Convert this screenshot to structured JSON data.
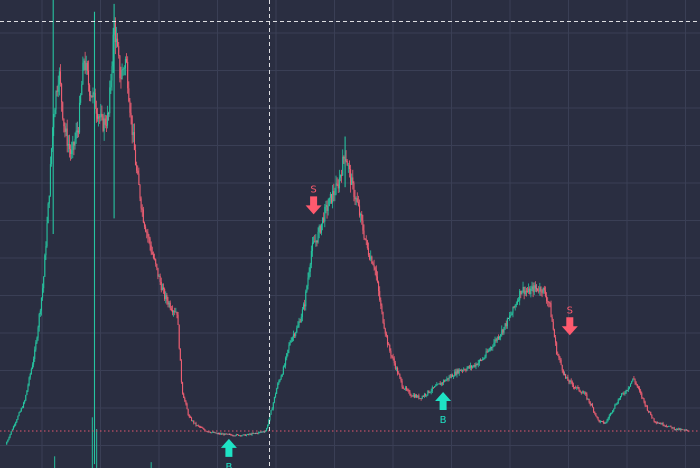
{
  "chart_data": {
    "type": "candlestick",
    "title": "",
    "xlabel": "",
    "ylabel": "",
    "grid": true,
    "legend": "none",
    "x_range": [
      0,
      100
    ],
    "y_range": [
      0,
      1200
    ],
    "reference_line": {
      "value": 95,
      "style": "dotted",
      "color": "#e0566d"
    },
    "crosshair": {
      "x": 38.5,
      "y": 1145,
      "style": "dashed",
      "color": "#ffffff"
    },
    "colors": {
      "background": "#2a2e41",
      "grid": "#3a3f55",
      "up": "#26c4a0",
      "down": "#ef5f73",
      "neutral": "#9aa0aa",
      "buy": "#1ee3c5",
      "sell": "#ff5a6e"
    },
    "price_path": [
      [
        0.8,
        60
      ],
      [
        2,
        110
      ],
      [
        3.5,
        170
      ],
      [
        5,
        300
      ],
      [
        6.2,
        480
      ],
      [
        7,
        700
      ],
      [
        7.6,
        900
      ],
      [
        8.4,
        1020
      ],
      [
        9.2,
        870
      ],
      [
        10.2,
        800
      ],
      [
        11.2,
        880
      ],
      [
        12,
        1050
      ],
      [
        12.7,
        980
      ],
      [
        13.5,
        940
      ],
      [
        14.6,
        880
      ],
      [
        15.5,
        900
      ],
      [
        16.3,
        1140
      ],
      [
        17.2,
        1000
      ],
      [
        18,
        1050
      ],
      [
        18.7,
        900
      ],
      [
        19.5,
        760
      ],
      [
        20.5,
        640
      ],
      [
        21.6,
        560
      ],
      [
        22.5,
        500
      ],
      [
        23.5,
        440
      ],
      [
        24.6,
        410
      ],
      [
        25.3,
        400
      ],
      [
        26,
        200
      ],
      [
        27,
        130
      ],
      [
        28,
        110
      ],
      [
        29.5,
        95
      ],
      [
        31,
        88
      ],
      [
        33,
        85
      ],
      [
        35,
        84
      ],
      [
        36.8,
        90
      ],
      [
        38,
        96
      ],
      [
        38.8,
        150
      ],
      [
        39.6,
        210
      ],
      [
        40.6,
        260
      ],
      [
        41.5,
        330
      ],
      [
        42.5,
        360
      ],
      [
        43.5,
        420
      ],
      [
        44.5,
        560
      ],
      [
        45.5,
        600
      ],
      [
        46.3,
        650
      ],
      [
        47.5,
        700
      ],
      [
        48.2,
        720
      ],
      [
        49.3,
        810
      ],
      [
        50.2,
        730
      ],
      [
        51,
        680
      ],
      [
        52.5,
        560
      ],
      [
        53.5,
        520
      ],
      [
        54.5,
        400
      ],
      [
        55.5,
        310
      ],
      [
        56.5,
        260
      ],
      [
        57.5,
        210
      ],
      [
        58.5,
        190
      ],
      [
        60,
        180
      ],
      [
        62,
        205
      ],
      [
        64,
        230
      ],
      [
        65.5,
        250
      ],
      [
        67.5,
        260
      ],
      [
        69,
        280
      ],
      [
        70.5,
        320
      ],
      [
        72,
        360
      ],
      [
        73.2,
        400
      ],
      [
        74.5,
        460
      ],
      [
        75.5,
        450
      ],
      [
        76.2,
        460
      ],
      [
        77.5,
        460
      ],
      [
        78.5,
        420
      ],
      [
        79.5,
        300
      ],
      [
        80.8,
        230
      ],
      [
        82,
        210
      ],
      [
        83.5,
        190
      ],
      [
        84.5,
        160
      ],
      [
        85.5,
        120
      ],
      [
        86.5,
        115
      ],
      [
        87.5,
        150
      ],
      [
        88.5,
        180
      ],
      [
        89.5,
        200
      ],
      [
        90.5,
        230
      ],
      [
        91.5,
        190
      ],
      [
        92.5,
        150
      ],
      [
        93.5,
        120
      ],
      [
        95,
        110
      ],
      [
        96.5,
        100
      ],
      [
        98.5,
        95
      ]
    ],
    "spikes": [
      {
        "x": 7.6,
        "high": 1240,
        "low": 600
      },
      {
        "x": 8.2,
        "high": 1240,
        "low": 1240
      },
      {
        "x": 13.5,
        "high": 1170,
        "low": 10
      },
      {
        "x": 16.3,
        "high": 1190,
        "low": 640
      },
      {
        "x": 49.3,
        "high": 850,
        "low": 720
      }
    ],
    "volume_bars": [
      {
        "x": 7.8,
        "value": 30
      },
      {
        "x": 13.2,
        "value": 130
      },
      {
        "x": 13.8,
        "value": 100
      },
      {
        "x": 21.6,
        "value": 15
      }
    ],
    "signals": [
      {
        "type": "buy",
        "x": 32.7,
        "y": 85,
        "label": "B"
      },
      {
        "type": "sell",
        "x": 44.8,
        "y": 640,
        "label": "S"
      },
      {
        "type": "buy",
        "x": 63.3,
        "y": 205,
        "label": "B"
      },
      {
        "type": "sell",
        "x": 81.4,
        "y": 330,
        "label": "S"
      }
    ]
  }
}
